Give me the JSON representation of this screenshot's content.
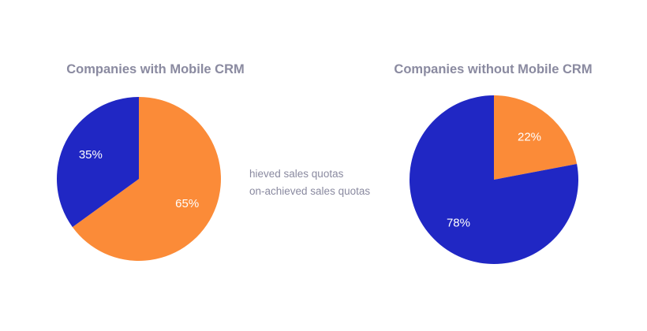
{
  "chart_data": [
    {
      "type": "pie",
      "title": "Companies with Mobile CRM",
      "slices": [
        {
          "key": "achieved",
          "value": 65,
          "label": "65%",
          "color": "#fb8b38"
        },
        {
          "key": "non_achieved",
          "value": 35,
          "label": "35%",
          "color": "#2027c4"
        }
      ]
    },
    {
      "type": "pie",
      "title": "Companies without Mobile CRM",
      "slices": [
        {
          "key": "achieved",
          "value": 22,
          "label": "22%",
          "color": "#fb8b38"
        },
        {
          "key": "non_achieved",
          "value": 78,
          "label": "78%",
          "color": "#2027c4"
        }
      ]
    }
  ],
  "legend": {
    "items": [
      {
        "label": "hieved sales quotas",
        "color": "#fb8b38"
      },
      {
        "label": "on-achieved sales quotas",
        "color": "#2027c4"
      }
    ]
  }
}
